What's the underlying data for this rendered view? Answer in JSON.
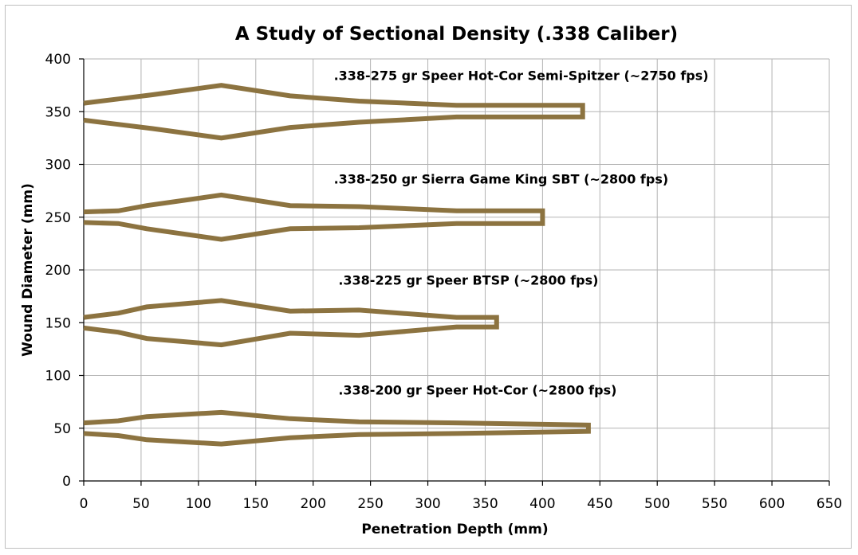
{
  "chart_data": {
    "type": "line",
    "title": "A Study of Sectional Density (.338 Caliber)",
    "xlabel": "Penetration Depth (mm)",
    "ylabel": "Wound Diameter (mm)",
    "xlim": [
      0,
      650
    ],
    "ylim": [
      0,
      400
    ],
    "xticks": [
      0,
      50,
      100,
      150,
      200,
      250,
      300,
      350,
      400,
      450,
      500,
      550,
      600,
      650
    ],
    "yticks": [
      0,
      50,
      100,
      150,
      200,
      250,
      300,
      350,
      400
    ],
    "grid": true,
    "legend": "none",
    "line_color": "#8c7340",
    "series": [
      {
        "name": ".338-275 gr Speer Hot-Cor Semi-Spitzer (~2750 fps)",
        "upper": [
          [
            0,
            358
          ],
          [
            30,
            362
          ],
          [
            60,
            366
          ],
          [
            120,
            375
          ],
          [
            180,
            365
          ],
          [
            240,
            360
          ],
          [
            325,
            356
          ],
          [
            435,
            356
          ]
        ],
        "lower": [
          [
            0,
            342
          ],
          [
            30,
            338
          ],
          [
            60,
            334
          ],
          [
            120,
            325
          ],
          [
            180,
            335
          ],
          [
            240,
            340
          ],
          [
            325,
            345
          ],
          [
            435,
            345
          ]
        ]
      },
      {
        "name": ".338-250 gr Sierra Game King SBT (~2800 fps)",
        "upper": [
          [
            0,
            255
          ],
          [
            30,
            256
          ],
          [
            55,
            261
          ],
          [
            120,
            271
          ],
          [
            180,
            261
          ],
          [
            240,
            260
          ],
          [
            325,
            256
          ],
          [
            400,
            256
          ]
        ],
        "lower": [
          [
            0,
            245
          ],
          [
            30,
            244
          ],
          [
            55,
            239
          ],
          [
            120,
            229
          ],
          [
            180,
            239
          ],
          [
            240,
            240
          ],
          [
            325,
            244
          ],
          [
            400,
            244
          ]
        ]
      },
      {
        "name": ".338-225 gr Speer BTSP (~2800 fps)",
        "upper": [
          [
            0,
            155
          ],
          [
            30,
            159
          ],
          [
            55,
            165
          ],
          [
            120,
            171
          ],
          [
            180,
            161
          ],
          [
            240,
            162
          ],
          [
            325,
            155
          ],
          [
            360,
            155
          ]
        ],
        "lower": [
          [
            0,
            145
          ],
          [
            30,
            141
          ],
          [
            55,
            135
          ],
          [
            120,
            129
          ],
          [
            180,
            140
          ],
          [
            240,
            138
          ],
          [
            325,
            146
          ],
          [
            360,
            146
          ]
        ]
      },
      {
        "name": ".338-200 gr Speer Hot-Cor (~2800 fps)",
        "upper": [
          [
            0,
            55
          ],
          [
            30,
            57
          ],
          [
            55,
            61
          ],
          [
            120,
            65
          ],
          [
            180,
            59
          ],
          [
            240,
            56
          ],
          [
            325,
            55
          ],
          [
            440,
            53
          ]
        ],
        "lower": [
          [
            0,
            45
          ],
          [
            30,
            43
          ],
          [
            55,
            39
          ],
          [
            120,
            35
          ],
          [
            180,
            41
          ],
          [
            240,
            44
          ],
          [
            325,
            45
          ],
          [
            440,
            47
          ]
        ]
      }
    ],
    "annotations": [
      {
        "text": ".338-275 gr Speer Hot-Cor Semi-Spitzer (~2750 fps)",
        "x": 218,
        "y": 380
      },
      {
        "text": ".338-250 gr Sierra Game King SBT (~2800 fps)",
        "x": 218,
        "y": 282
      },
      {
        "text": ".338-225 gr Speer BTSP (~2800 fps)",
        "x": 222,
        "y": 186
      },
      {
        "text": ".338-200 gr Speer Hot-Cor (~2800 fps)",
        "x": 222,
        "y": 82
      }
    ]
  }
}
